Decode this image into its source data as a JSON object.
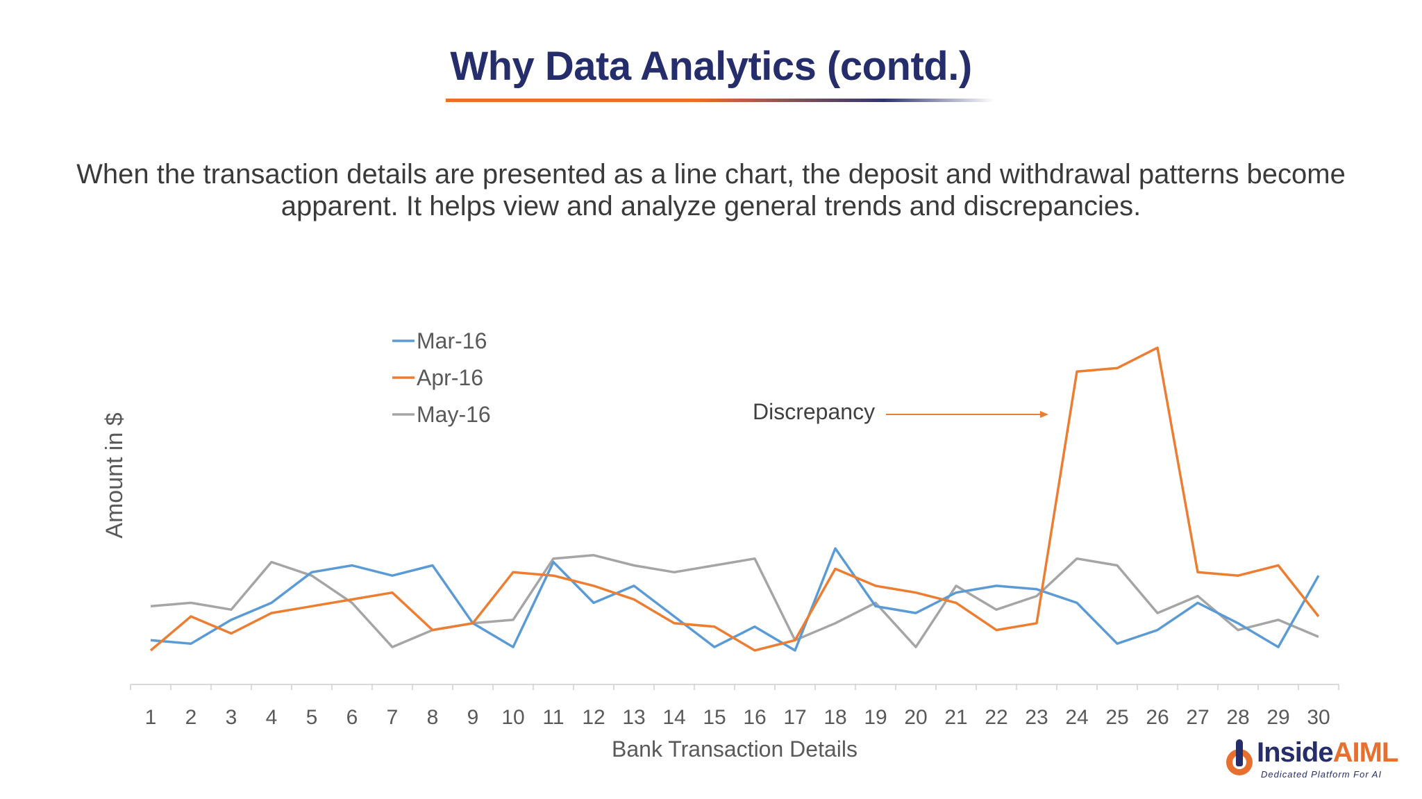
{
  "slide": {
    "title": "Why Data Analytics (contd.)",
    "description": "When the transaction details are presented as a line chart, the deposit and withdrawal patterns become apparent. It helps view and analyze general trends and discrepancies."
  },
  "logo": {
    "name_part1": "Inside",
    "name_part2": "AIML",
    "tagline": "Dedicated Platform For AI"
  },
  "colors": {
    "title": "#262d6b",
    "accent": "#e8702f",
    "mar16": "#5b9bd5",
    "apr16": "#ed7d31",
    "may16": "#a5a5a5"
  },
  "chart_data": {
    "type": "line",
    "xlabel": "Bank Transaction Details",
    "ylabel": "Amount in $",
    "x": [
      1,
      2,
      3,
      4,
      5,
      6,
      7,
      8,
      9,
      10,
      11,
      12,
      13,
      14,
      15,
      16,
      17,
      18,
      19,
      20,
      21,
      22,
      23,
      24,
      25,
      26,
      27,
      28,
      29,
      30
    ],
    "ylim": [
      0,
      100
    ],
    "grid": false,
    "legend": "top-left",
    "annotation": {
      "text": "Discrepancy",
      "arrow_to_x": 23.3,
      "arrow_to_y": 78
    },
    "series": [
      {
        "name": "Mar-16",
        "color": "#5b9bd5",
        "values": [
          13,
          12,
          19,
          24,
          33,
          35,
          32,
          35,
          18,
          11,
          36,
          24,
          29,
          20,
          11,
          17,
          10,
          40,
          23,
          21,
          27,
          29,
          28,
          24,
          12,
          16,
          24,
          18,
          11,
          32
        ]
      },
      {
        "name": "Apr-16",
        "color": "#ed7d31",
        "values": [
          10,
          20,
          15,
          21,
          23,
          25,
          27,
          16,
          18,
          33,
          32,
          29,
          25,
          18,
          17,
          10,
          13,
          34,
          29,
          27,
          24,
          16,
          18,
          92,
          93,
          99,
          33,
          32,
          35,
          20
        ]
      },
      {
        "name": "May-16",
        "color": "#a5a5a5",
        "values": [
          23,
          24,
          22,
          36,
          32,
          24,
          11,
          16,
          18,
          19,
          37,
          38,
          35,
          33,
          35,
          37,
          13,
          18,
          24,
          11,
          29,
          22,
          26,
          37,
          35,
          21,
          26,
          16,
          19,
          14
        ]
      }
    ]
  }
}
